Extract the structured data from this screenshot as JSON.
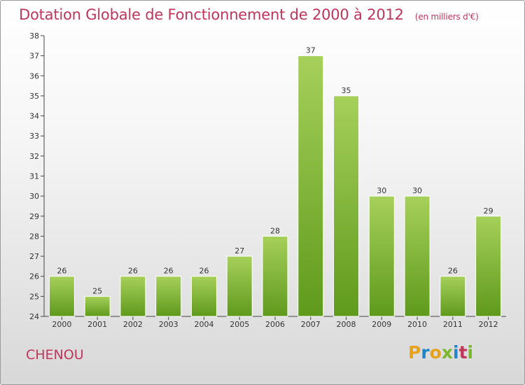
{
  "title": "Dotation Globale de Fonctionnement de 2000 à 2012",
  "unit": "(en milliers d'€)",
  "commune": "CHENOU",
  "logo": "Proxiti",
  "colors": {
    "title": "#c0355a",
    "bar_light": "#a6d05a",
    "bar_dark": "#5f9a1c",
    "logo": [
      "#e8a21a",
      "#1e86c8",
      "#e8a21a",
      "#7ab82e",
      "#1e86c8",
      "#c0355a",
      "#7ab82e"
    ]
  },
  "chart_data": {
    "type": "bar",
    "title": "Dotation Globale de Fonctionnement de 2000 à 2012",
    "subtitle": "(en milliers d'€)",
    "categories": [
      "2000",
      "2001",
      "2002",
      "2003",
      "2004",
      "2005",
      "2006",
      "2007",
      "2008",
      "2009",
      "2010",
      "2011",
      "2012"
    ],
    "values": [
      26,
      25,
      26,
      26,
      26,
      27,
      28,
      37,
      35,
      30,
      30,
      26,
      29
    ],
    "ylim": [
      24,
      38
    ],
    "yticks": [
      24,
      25,
      26,
      27,
      28,
      29,
      30,
      31,
      32,
      33,
      34,
      35,
      36,
      37,
      38
    ],
    "grid": false,
    "xlabel": "",
    "ylabel": ""
  }
}
